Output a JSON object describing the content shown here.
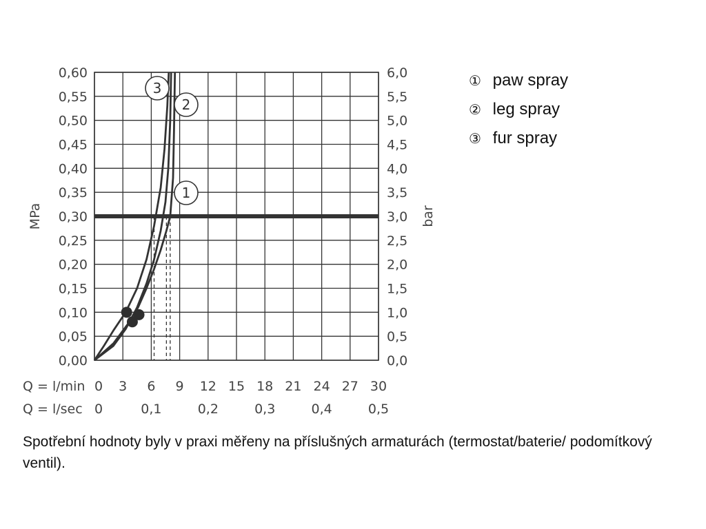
{
  "chart_data": {
    "type": "line",
    "y_left": {
      "label": "MPa",
      "ylim": [
        0,
        0.6
      ],
      "ticks": [
        "0,00",
        "0,05",
        "0,10",
        "0,15",
        "0,20",
        "0,25",
        "0,30",
        "0,35",
        "0,40",
        "0,45",
        "0,50",
        "0,55",
        "0,60"
      ]
    },
    "y_right": {
      "label": "bar",
      "ylim": [
        0,
        6.0
      ],
      "ticks": [
        "0,0",
        "0,5",
        "1,0",
        "1,5",
        "2,0",
        "2,5",
        "3,0",
        "3,5",
        "4,0",
        "4,5",
        "5,0",
        "5,5",
        "6,0"
      ]
    },
    "x_rows": [
      {
        "label": "Q = l/min",
        "xlim": [
          0,
          30
        ],
        "tick_values": [
          0,
          3,
          6,
          9,
          12,
          15,
          18,
          21,
          24,
          27,
          30
        ],
        "ticks": [
          "0",
          "3",
          "6",
          "9",
          "12",
          "15",
          "18",
          "21",
          "24",
          "27",
          "30"
        ]
      },
      {
        "label": "Q = l/sec",
        "xlim": [
          0,
          0.5
        ],
        "tick_values": [
          0,
          0.1,
          0.2,
          0.3,
          0.4,
          0.5
        ],
        "ticks": [
          "0",
          "0,1",
          "0,2",
          "0,3",
          "0,4",
          "0,5"
        ]
      }
    ],
    "grid": true,
    "reference_line": {
      "y": 0.3
    },
    "series": [
      {
        "name": "1",
        "x": [
          0,
          2,
          3.5,
          4.6,
          5.5,
          6.3,
          7.0,
          7.6,
          8.0,
          8.3,
          8.4,
          8.5
        ],
        "y": [
          0,
          0.035,
          0.075,
          0.11,
          0.15,
          0.19,
          0.23,
          0.27,
          0.3,
          0.38,
          0.48,
          0.6
        ],
        "marker": {
          "x": 4.7,
          "y": 0.095
        },
        "flow_at_reference": 8.0
      },
      {
        "name": "2",
        "x": [
          0,
          2,
          3.3,
          4.5,
          5.5,
          6.3,
          7.0,
          7.5,
          7.8,
          8.0,
          8.1
        ],
        "y": [
          0,
          0.03,
          0.065,
          0.11,
          0.16,
          0.21,
          0.27,
          0.33,
          0.4,
          0.5,
          0.6
        ],
        "marker": {
          "x": 4.0,
          "y": 0.08
        },
        "flow_at_reference": 7.6
      },
      {
        "name": "3",
        "x": [
          0,
          1,
          2,
          3.3,
          4.5,
          5.5,
          6.3,
          7.0,
          7.4,
          7.7,
          7.85
        ],
        "y": [
          0,
          0.03,
          0.062,
          0.1,
          0.15,
          0.21,
          0.28,
          0.36,
          0.44,
          0.53,
          0.6
        ],
        "marker": {
          "x": 3.4,
          "y": 0.1
        },
        "flow_at_reference": 6.3
      }
    ],
    "curve_labels": [
      "1",
      "2",
      "3"
    ]
  },
  "legend": [
    {
      "num": "①",
      "text": "paw spray"
    },
    {
      "num": "②",
      "text": "leg spray"
    },
    {
      "num": "③",
      "text": "fur spray"
    }
  ],
  "footnote": "Spotřební hodnoty byly v praxi měřeny na příslušných armaturách (termostat/baterie/ podomítkový ventil)."
}
